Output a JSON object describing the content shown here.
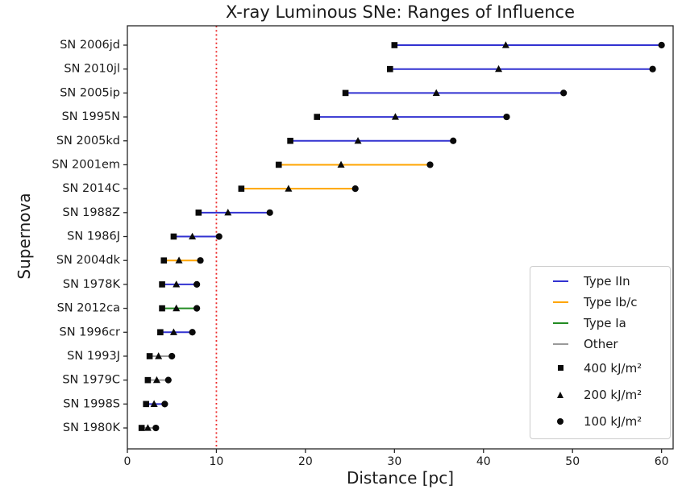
{
  "chart_data": {
    "type": "scatter",
    "subtype": "horizontal-range-dumbbell",
    "title": "X-ray Luminous SNe: Ranges of Influence",
    "xlabel": "Distance [pc]",
    "ylabel": "Supernova",
    "xlim": [
      0,
      61.3
    ],
    "x_ticks": [
      0,
      10,
      20,
      30,
      40,
      50,
      60
    ],
    "grid": false,
    "reference_line": {
      "x": 10,
      "color": "#ed2d2d",
      "style": "dotted"
    },
    "type_colors": {
      "IIn": "#3232d1",
      "Ib/c": "#ffa500",
      "Ia": "#228b22",
      "Other": "#9a9a9a"
    },
    "marker_color": "#0a0a0a",
    "marker_meaning": {
      "square": "400 kJ/m²",
      "triangle": "200 kJ/m²",
      "circle": "100 kJ/m²"
    },
    "rows": [
      {
        "name": "SN 2006jd",
        "sn_type": "IIn",
        "d_400": 30.0,
        "d_200": 42.5,
        "d_100": 60.0
      },
      {
        "name": "SN 2010jl",
        "sn_type": "IIn",
        "d_400": 29.5,
        "d_200": 41.7,
        "d_100": 59.0
      },
      {
        "name": "SN 2005ip",
        "sn_type": "IIn",
        "d_400": 24.5,
        "d_200": 34.7,
        "d_100": 49.0
      },
      {
        "name": "SN 1995N",
        "sn_type": "IIn",
        "d_400": 21.3,
        "d_200": 30.1,
        "d_100": 42.6
      },
      {
        "name": "SN 2005kd",
        "sn_type": "IIn",
        "d_400": 18.3,
        "d_200": 25.9,
        "d_100": 36.6
      },
      {
        "name": "SN 2001em",
        "sn_type": "Ib/c",
        "d_400": 17.0,
        "d_200": 24.0,
        "d_100": 34.0
      },
      {
        "name": "SN 2014C",
        "sn_type": "Ib/c",
        "d_400": 12.8,
        "d_200": 18.1,
        "d_100": 25.6
      },
      {
        "name": "SN 1988Z",
        "sn_type": "IIn",
        "d_400": 8.0,
        "d_200": 11.3,
        "d_100": 16.0
      },
      {
        "name": "SN 1986J",
        "sn_type": "IIn",
        "d_400": 5.2,
        "d_200": 7.3,
        "d_100": 10.3
      },
      {
        "name": "SN 2004dk",
        "sn_type": "Ib/c",
        "d_400": 4.1,
        "d_200": 5.8,
        "d_100": 8.2
      },
      {
        "name": "SN 1978K",
        "sn_type": "IIn",
        "d_400": 3.9,
        "d_200": 5.5,
        "d_100": 7.8
      },
      {
        "name": "SN 2012ca",
        "sn_type": "Ia",
        "d_400": 3.9,
        "d_200": 5.5,
        "d_100": 7.8
      },
      {
        "name": "SN 1996cr",
        "sn_type": "IIn",
        "d_400": 3.7,
        "d_200": 5.2,
        "d_100": 7.3
      },
      {
        "name": "SN 1993J",
        "sn_type": "Other",
        "d_400": 2.5,
        "d_200": 3.5,
        "d_100": 5.0
      },
      {
        "name": "SN 1979C",
        "sn_type": "Other",
        "d_400": 2.3,
        "d_200": 3.3,
        "d_100": 4.6
      },
      {
        "name": "SN 1998S",
        "sn_type": "IIn",
        "d_400": 2.1,
        "d_200": 3.0,
        "d_100": 4.2
      },
      {
        "name": "SN 1980K",
        "sn_type": "Other",
        "d_400": 1.6,
        "d_200": 2.3,
        "d_100": 3.2
      }
    ],
    "legend": {
      "position": "lower right",
      "types": [
        {
          "label": "Type IIn",
          "color": "#3232d1"
        },
        {
          "label": "Type Ib/c",
          "color": "#ffa500"
        },
        {
          "label": "Type Ia",
          "color": "#228b22"
        },
        {
          "label": "Other",
          "color": "#9a9a9a"
        }
      ],
      "fluences": [
        {
          "label": "400 kJ/m²",
          "marker": "square"
        },
        {
          "label": "200 kJ/m²",
          "marker": "triangle"
        },
        {
          "label": "100 kJ/m²",
          "marker": "circle"
        }
      ]
    }
  }
}
